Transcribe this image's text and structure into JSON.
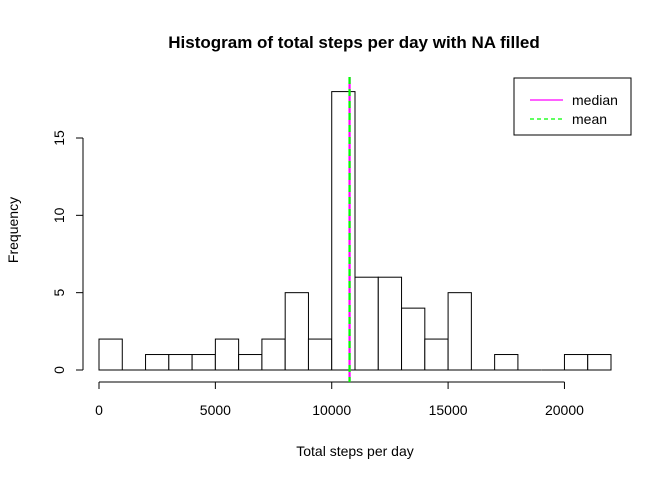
{
  "chart_data": {
    "type": "histogram",
    "title": "Histogram of total steps per day with NA filled",
    "xlabel": "Total steps per day",
    "ylabel": "Frequency",
    "bin_width": 1000,
    "bin_start": 0,
    "bin_end": 22000,
    "counts": [
      2,
      0,
      1,
      1,
      1,
      2,
      1,
      2,
      5,
      2,
      18,
      6,
      6,
      4,
      2,
      5,
      0,
      1,
      0,
      0,
      1,
      1
    ],
    "xlim": [
      0,
      22000
    ],
    "ylim": [
      0,
      18
    ],
    "x_ticks": [
      0,
      5000,
      10000,
      15000,
      20000
    ],
    "x_tick_labels": [
      "0",
      "5000",
      "10000",
      "15000",
      "20000"
    ],
    "y_ticks": [
      0,
      5,
      10,
      15
    ],
    "y_tick_labels": [
      "0",
      "5",
      "10",
      "15"
    ],
    "median": 10766.19,
    "mean": 10766.19,
    "colors": {
      "median": "#ff00ff",
      "mean": "#00ff00",
      "bars": "#ffffff",
      "bar_border": "#000000"
    },
    "legend": {
      "position": "top-right",
      "entries": [
        {
          "label": "median",
          "color": "#ff00ff",
          "style": "solid"
        },
        {
          "label": "mean",
          "color": "#00ff00",
          "style": "dashed"
        }
      ]
    }
  }
}
